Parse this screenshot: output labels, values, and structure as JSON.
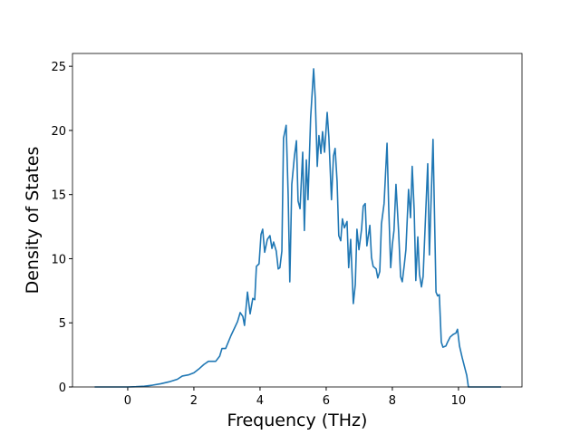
{
  "chart_data": {
    "type": "line",
    "xlabel": "Frequency (THz)",
    "ylabel": "Density of States",
    "xlim": [
      -1.67,
      11.92
    ],
    "ylim": [
      0,
      26
    ],
    "xticks": [
      0,
      2,
      4,
      6,
      8,
      10
    ],
    "yticks": [
      0,
      5,
      10,
      15,
      20,
      25
    ],
    "series": [
      {
        "color": "#1f77b4",
        "x": [
          -1.0,
          -0.5,
          0,
          0.25,
          0.5,
          0.75,
          1.0,
          1.25,
          1.5,
          1.65,
          1.85,
          2.0,
          2.15,
          2.3,
          2.44,
          2.66,
          2.78,
          2.85,
          2.96,
          3.12,
          3.23,
          3.32,
          3.4,
          3.48,
          3.53,
          3.62,
          3.7,
          3.78,
          3.84,
          3.89,
          3.97,
          4.03,
          4.08,
          4.14,
          4.22,
          4.3,
          4.36,
          4.41,
          4.49,
          4.55,
          4.6,
          4.66,
          4.71,
          4.79,
          4.85,
          4.9,
          4.96,
          5.04,
          5.1,
          5.15,
          5.21,
          5.29,
          5.34,
          5.4,
          5.45,
          5.53,
          5.62,
          5.67,
          5.73,
          5.78,
          5.84,
          5.89,
          5.95,
          6.03,
          6.08,
          6.16,
          6.22,
          6.27,
          6.33,
          6.38,
          6.44,
          6.49,
          6.55,
          6.63,
          6.68,
          6.74,
          6.82,
          6.88,
          6.93,
          6.99,
          7.07,
          7.12,
          7.18,
          7.23,
          7.32,
          7.37,
          7.42,
          7.51,
          7.56,
          7.62,
          7.67,
          7.75,
          7.84,
          7.89,
          7.95,
          8.0,
          8.05,
          8.11,
          8.19,
          8.25,
          8.3,
          8.36,
          8.41,
          8.49,
          8.55,
          8.6,
          8.66,
          8.71,
          8.77,
          8.82,
          8.88,
          8.93,
          8.99,
          9.07,
          9.12,
          9.23,
          9.32,
          9.37,
          9.42,
          9.48,
          9.53,
          9.62,
          9.67,
          9.75,
          9.84,
          9.92,
          9.97,
          10.03,
          10.11,
          10.19,
          10.25,
          10.3,
          11.29
        ],
        "values": [
          0,
          0,
          0,
          0.02,
          0.06,
          0.14,
          0.25,
          0.4,
          0.6,
          0.85,
          0.95,
          1.1,
          1.4,
          1.75,
          2.0,
          2.0,
          2.4,
          3.0,
          3.0,
          4.0,
          4.6,
          5.1,
          5.8,
          5.5,
          4.8,
          7.4,
          5.7,
          6.9,
          6.8,
          9.4,
          9.6,
          11.9,
          12.3,
          10.5,
          11.5,
          11.8,
          10.8,
          11.3,
          10.6,
          9.2,
          9.3,
          10.6,
          19.4,
          20.4,
          15,
          8.2,
          15.8,
          18,
          19.2,
          14.5,
          13.9,
          18.3,
          12.2,
          17.7,
          14.6,
          21,
          24.8,
          22.5,
          17.2,
          19.6,
          18.2,
          19.9,
          18.3,
          21.4,
          19.5,
          14.6,
          18,
          18.6,
          16,
          11.8,
          11.4,
          13.1,
          12.4,
          12.9,
          9.3,
          11.5,
          6.5,
          8,
          12.3,
          10.7,
          12.3,
          14.1,
          14.3,
          11,
          12.6,
          10.1,
          9.4,
          9.2,
          8.5,
          9.0,
          12.7,
          14.3,
          19,
          14,
          9.3,
          11.1,
          12.2,
          15.8,
          12.1,
          8.6,
          8.2,
          9.5,
          10.7,
          15.4,
          13.2,
          17.2,
          13.8,
          8.3,
          11.7,
          8.8,
          7.8,
          8.6,
          12.4,
          17.4,
          10.3,
          19.3,
          7.4,
          7.1,
          7.2,
          3.5,
          3.1,
          3.2,
          3.5,
          3.9,
          4.1,
          4.2,
          4.5,
          3.2,
          2.3,
          1.5,
          0.9,
          0,
          0
        ]
      }
    ]
  }
}
